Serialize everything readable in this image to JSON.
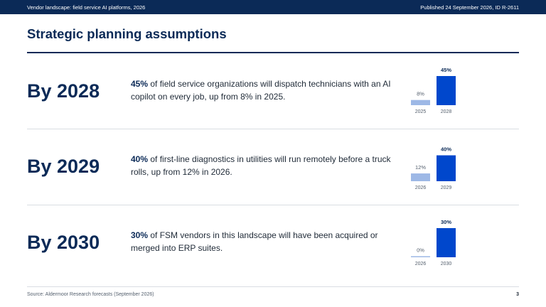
{
  "header": {
    "left": "Vendor landscape: field service AI platforms, 2026",
    "right": "Published 24 September 2026, ID R-2611"
  },
  "title": "Strategic planning assumptions",
  "colors": {
    "navy": "#0b2a57",
    "accent": "#0047cc",
    "light_bar": "#9db8e6"
  },
  "assumptions": [
    {
      "year": "By 2028",
      "highlight": "45%",
      "text": " of field service organizations will dispatch technicians with an AI copilot on every job, up from 8% in 2025.",
      "chart_data": {
        "type": "bar",
        "categories": [
          "2025",
          "2028"
        ],
        "values": [
          8,
          45
        ],
        "value_labels": [
          "8%",
          "45%"
        ],
        "ylim": [
          0,
          45
        ]
      }
    },
    {
      "year": "By 2029",
      "highlight": "40%",
      "text": " of first-line diagnostics in utilities will run remotely before a truck rolls, up from 12% in 2026.",
      "chart_data": {
        "type": "bar",
        "categories": [
          "2026",
          "2029"
        ],
        "values": [
          12,
          40
        ],
        "value_labels": [
          "12%",
          "40%"
        ],
        "ylim": [
          0,
          45
        ]
      }
    },
    {
      "year": "By 2030",
      "highlight": "30%",
      "text": " of FSM vendors in this landscape will have been acquired or merged into ERP suites.",
      "chart_data": {
        "type": "bar",
        "categories": [
          "2026",
          "2030"
        ],
        "values": [
          0,
          30
        ],
        "value_labels": [
          "0%",
          "30%"
        ],
        "ylim": [
          0,
          30
        ]
      }
    }
  ],
  "footer": {
    "source": "Source: Aldermoor Research forecasts (September 2026)",
    "page": "3"
  }
}
